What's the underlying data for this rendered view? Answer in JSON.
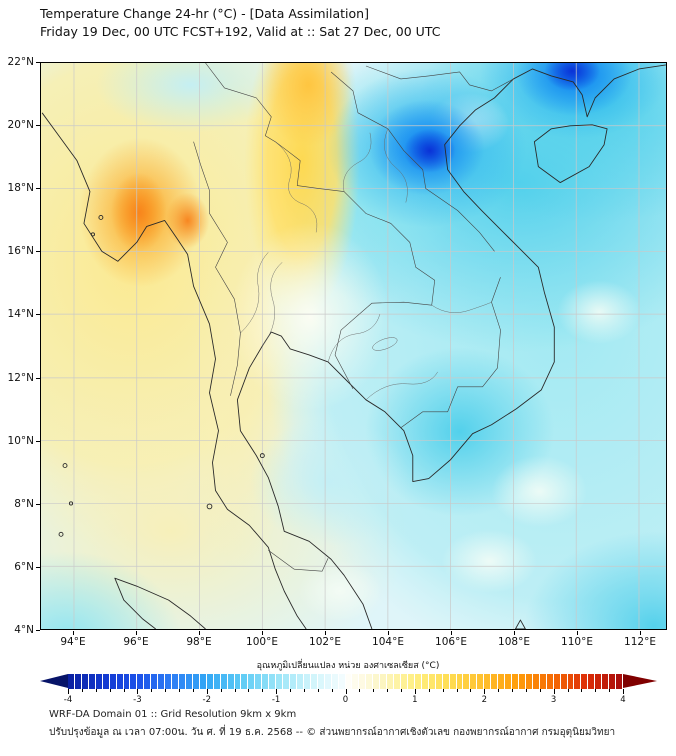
{
  "title": "Temperature Change 24-hr (°C) - [Data Assimilation]",
  "subtitle": "Friday 19 Dec, 00 UTC FCST+192, Valid at :: Sat 27 Dec, 00 UTC",
  "map": {
    "y_ticks": [
      "22°N",
      "20°N",
      "18°N",
      "16°N",
      "14°N",
      "12°N",
      "10°N",
      "8°N",
      "6°N",
      "4°N"
    ],
    "x_ticks": [
      "94°E",
      "96°E",
      "98°E",
      "100°E",
      "102°E",
      "104°E",
      "106°E",
      "108°E",
      "110°E",
      "112°E"
    ]
  },
  "colorbar": {
    "label": "อุณหภูมิเปลี่ยนแปลง หน่วย องศาเซลเซียส (°C)",
    "ticks": [
      "-4",
      "-3",
      "-2",
      "-1",
      "0",
      "1",
      "2",
      "3",
      "4"
    ],
    "min": -4,
    "max": 4,
    "step": 0.1,
    "minor_tick_step": 0.2,
    "arrow_left_color": "#071468",
    "arrow_right_color": "#800000",
    "stops": [
      [
        -4.0,
        "#0a1f9e"
      ],
      [
        -3.5,
        "#1238cf"
      ],
      [
        -3.0,
        "#1b50e8"
      ],
      [
        -2.5,
        "#2d7df5"
      ],
      [
        -2.0,
        "#33a7f5"
      ],
      [
        -1.5,
        "#5ccaf5"
      ],
      [
        -1.0,
        "#97e4f8"
      ],
      [
        -0.5,
        "#cef4fb"
      ],
      [
        -0.05,
        "#f2fcfe"
      ],
      [
        0.05,
        "#fffef8"
      ],
      [
        0.5,
        "#fcf6c8"
      ],
      [
        1.0,
        "#ffef82"
      ],
      [
        1.5,
        "#ffdd52"
      ],
      [
        2.0,
        "#ffc02e"
      ],
      [
        2.5,
        "#ff9c0a"
      ],
      [
        3.0,
        "#f56903"
      ],
      [
        3.5,
        "#dd2c07"
      ],
      [
        4.0,
        "#a50b0b"
      ]
    ]
  },
  "footer": {
    "line1": "WRF-DA Domain 01 :: Grid Resolution 9km x 9km",
    "line2": "ปรับปรุงข้อมูล ณ เวลา 07:00น. วัน ศ. ที่ 19 ธ.ค. 2568 -- © ส่วนพยากรณ์อากาศเชิงตัวเลข กองพยากรณ์อากาศ กรมอุตุนิยมวิทยา"
  }
}
